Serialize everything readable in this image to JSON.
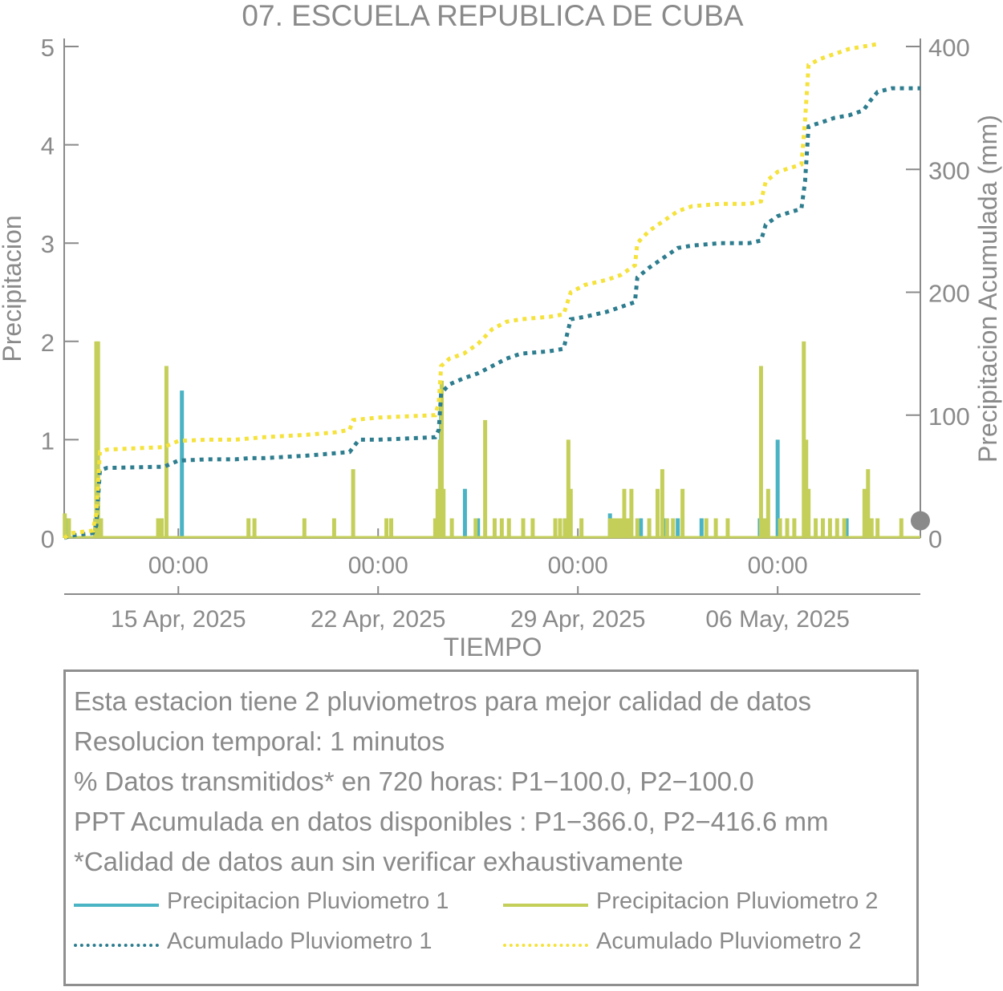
{
  "chart_data": {
    "type": "bar",
    "title": "07. ESCUELA REPUBLICA DE CUBA",
    "xlabel": "TIEMPO",
    "ylabel": "Precipitacion",
    "y2label": "Precipitacion Acumulada (mm)",
    "ylim": [
      0,
      5
    ],
    "y2lim": [
      0,
      400
    ],
    "yticks": [
      0,
      1,
      2,
      3,
      4,
      5
    ],
    "y2ticks": [
      0,
      100,
      200,
      300,
      400
    ],
    "xlim": [
      "2025-04-11T00:00",
      "2025-05-11T00:00"
    ],
    "xticks": [
      {
        "time": "2025-04-15T00:00",
        "label": "00:00",
        "date": "15 Apr, 2025"
      },
      {
        "time": "2025-04-22T00:00",
        "label": "00:00",
        "date": "22 Apr, 2025"
      },
      {
        "time": "2025-04-29T00:00",
        "label": "00:00",
        "date": "29 Apr, 2025"
      },
      {
        "time": "2025-05-06T00:00",
        "label": "00:00",
        "date": "06 May, 2025"
      }
    ],
    "colors": {
      "p1": "#4ab3c4",
      "p2": "#c4cf5a",
      "acc1": "#2e7d8f",
      "acc2": "#f5e23c",
      "axis": "#8a8a8a"
    },
    "series": [
      {
        "name": "Precipitacion Pluviometro 1",
        "axis": "left",
        "style": "bar",
        "points": [
          [
            "2025-04-11T01:00",
            0.2
          ],
          [
            "2025-04-12T03:00",
            1.25
          ],
          [
            "2025-04-12T05:00",
            0.2
          ],
          [
            "2025-04-15T03:00",
            1.5
          ],
          [
            "2025-04-24T03:00",
            0.4
          ],
          [
            "2025-04-24T05:00",
            1.5
          ],
          [
            "2025-04-25T01:00",
            0.5
          ],
          [
            "2025-04-25T12:00",
            0.2
          ],
          [
            "2025-04-28T15:00",
            0.2
          ],
          [
            "2025-04-30T03:00",
            0.25
          ],
          [
            "2025-05-01T05:00",
            0.2
          ],
          [
            "2025-05-02T02:00",
            0.2
          ],
          [
            "2025-05-02T12:00",
            0.2
          ],
          [
            "2025-05-03T08:00",
            0.2
          ],
          [
            "2025-05-05T09:00",
            0.2
          ],
          [
            "2025-05-06T00:00",
            1.0
          ],
          [
            "2025-05-08T10:00",
            0.2
          ]
        ]
      },
      {
        "name": "Precipitacion Pluviometro 2",
        "axis": "left",
        "style": "bar",
        "points": [
          [
            "2025-04-11T00:30",
            0.25
          ],
          [
            "2025-04-11T04:00",
            0.2
          ],
          [
            "2025-04-12T02:00",
            0.2
          ],
          [
            "2025-04-12T03:00",
            2.0
          ],
          [
            "2025-04-12T04:30",
            2.0
          ],
          [
            "2025-04-12T07:00",
            0.2
          ],
          [
            "2025-04-14T07:00",
            0.2
          ],
          [
            "2025-04-14T10:00",
            0.2
          ],
          [
            "2025-04-14T14:00",
            1.75
          ],
          [
            "2025-04-17T11:00",
            0.2
          ],
          [
            "2025-04-17T16:00",
            0.2
          ],
          [
            "2025-04-19T10:00",
            0.2
          ],
          [
            "2025-04-20T11:00",
            0.2
          ],
          [
            "2025-04-21T03:00",
            0.7
          ],
          [
            "2025-04-22T07:00",
            0.2
          ],
          [
            "2025-04-22T11:00",
            0.2
          ],
          [
            "2025-04-24T00:00",
            0.2
          ],
          [
            "2025-04-24T02:00",
            0.5
          ],
          [
            "2025-04-24T04:00",
            1.0
          ],
          [
            "2025-04-24T05:30",
            1.6
          ],
          [
            "2025-04-24T07:00",
            0.5
          ],
          [
            "2025-04-24T14:00",
            0.2
          ],
          [
            "2025-04-25T10:00",
            0.2
          ],
          [
            "2025-04-25T18:00",
            1.2
          ],
          [
            "2025-04-26T02:00",
            0.2
          ],
          [
            "2025-04-26T08:00",
            0.2
          ],
          [
            "2025-04-26T14:00",
            0.2
          ],
          [
            "2025-04-27T02:00",
            0.2
          ],
          [
            "2025-04-27T10:00",
            0.2
          ],
          [
            "2025-04-28T05:00",
            0.2
          ],
          [
            "2025-04-28T09:00",
            0.2
          ],
          [
            "2025-04-28T13:00",
            0.2
          ],
          [
            "2025-04-28T16:00",
            1.0
          ],
          [
            "2025-04-28T18:00",
            0.5
          ],
          [
            "2025-04-29T03:00",
            0.2
          ],
          [
            "2025-04-30T03:00",
            0.2
          ],
          [
            "2025-04-30T06:00",
            0.2
          ],
          [
            "2025-04-30T09:00",
            0.2
          ],
          [
            "2025-04-30T12:00",
            0.2
          ],
          [
            "2025-04-30T15:00",
            0.5
          ],
          [
            "2025-04-30T18:00",
            0.2
          ],
          [
            "2025-04-30T21:00",
            0.5
          ],
          [
            "2025-05-01T02:00",
            0.2
          ],
          [
            "2025-05-01T12:00",
            0.2
          ],
          [
            "2025-05-01T19:00",
            0.5
          ],
          [
            "2025-05-01T23:00",
            0.7
          ],
          [
            "2025-05-02T03:00",
            0.2
          ],
          [
            "2025-05-02T08:00",
            0.2
          ],
          [
            "2025-05-02T16:00",
            0.5
          ],
          [
            "2025-05-03T12:00",
            0.2
          ],
          [
            "2025-05-03T20:00",
            0.2
          ],
          [
            "2025-05-04T06:00",
            0.2
          ],
          [
            "2025-05-05T10:00",
            1.75
          ],
          [
            "2025-05-05T13:00",
            0.2
          ],
          [
            "2025-05-05T16:00",
            0.5
          ],
          [
            "2025-05-06T02:00",
            0.2
          ],
          [
            "2025-05-06T08:00",
            0.2
          ],
          [
            "2025-05-06T14:00",
            0.2
          ],
          [
            "2025-05-06T22:00",
            2.0
          ],
          [
            "2025-05-07T00:00",
            1.0
          ],
          [
            "2025-05-07T02:00",
            0.5
          ],
          [
            "2025-05-07T08:00",
            0.2
          ],
          [
            "2025-05-07T14:00",
            0.2
          ],
          [
            "2025-05-07T20:00",
            0.2
          ],
          [
            "2025-05-08T02:00",
            0.2
          ],
          [
            "2025-05-08T08:00",
            0.2
          ],
          [
            "2025-05-09T01:00",
            0.5
          ],
          [
            "2025-05-09T04:00",
            0.7
          ],
          [
            "2025-05-09T07:00",
            0.2
          ],
          [
            "2025-05-09T12:00",
            0.2
          ],
          [
            "2025-05-10T08:00",
            0.2
          ]
        ]
      },
      {
        "name": "Acumulado Pluviometro 1",
        "axis": "right",
        "style": "dotted",
        "points": [
          [
            "2025-04-11T00:00",
            0
          ],
          [
            "2025-04-11T06:00",
            2
          ],
          [
            "2025-04-12T00:00",
            4
          ],
          [
            "2025-04-12T03:00",
            10
          ],
          [
            "2025-04-12T06:00",
            55
          ],
          [
            "2025-04-12T12:00",
            57
          ],
          [
            "2025-04-14T12:00",
            58
          ],
          [
            "2025-04-15T00:00",
            63
          ],
          [
            "2025-04-16T00:00",
            64
          ],
          [
            "2025-04-17T00:00",
            64
          ],
          [
            "2025-04-17T12:00",
            65
          ],
          [
            "2025-04-18T00:00",
            65
          ],
          [
            "2025-04-19T12:00",
            67
          ],
          [
            "2025-04-20T12:00",
            69
          ],
          [
            "2025-04-21T00:00",
            70
          ],
          [
            "2025-04-21T04:00",
            75
          ],
          [
            "2025-04-21T08:00",
            80
          ],
          [
            "2025-04-22T00:00",
            80
          ],
          [
            "2025-04-23T00:00",
            81
          ],
          [
            "2025-04-24T00:00",
            82
          ],
          [
            "2025-04-24T03:00",
            88
          ],
          [
            "2025-04-24T05:00",
            118
          ],
          [
            "2025-04-24T12:00",
            125
          ],
          [
            "2025-04-25T00:00",
            130
          ],
          [
            "2025-04-25T12:00",
            134
          ],
          [
            "2025-04-26T00:00",
            140
          ],
          [
            "2025-04-26T12:00",
            146
          ],
          [
            "2025-04-27T00:00",
            150
          ],
          [
            "2025-04-28T00:00",
            152
          ],
          [
            "2025-04-28T12:00",
            154
          ],
          [
            "2025-04-28T18:00",
            178
          ],
          [
            "2025-04-29T06:00",
            180
          ],
          [
            "2025-04-30T00:00",
            184
          ],
          [
            "2025-04-30T12:00",
            188
          ],
          [
            "2025-05-01T00:00",
            192
          ],
          [
            "2025-05-01T02:00",
            212
          ],
          [
            "2025-05-01T12:00",
            220
          ],
          [
            "2025-05-02T00:00",
            228
          ],
          [
            "2025-05-02T06:00",
            232
          ],
          [
            "2025-05-02T12:00",
            236
          ],
          [
            "2025-05-03T00:00",
            238
          ],
          [
            "2025-05-04T00:00",
            240
          ],
          [
            "2025-05-05T00:00",
            240
          ],
          [
            "2025-05-05T10:00",
            242
          ],
          [
            "2025-05-05T14:00",
            255
          ],
          [
            "2025-05-06T00:00",
            262
          ],
          [
            "2025-05-06T20:00",
            268
          ],
          [
            "2025-05-06T23:00",
            290
          ],
          [
            "2025-05-07T02:00",
            335
          ],
          [
            "2025-05-07T12:00",
            338
          ],
          [
            "2025-05-08T00:00",
            342
          ],
          [
            "2025-05-08T12:00",
            344
          ],
          [
            "2025-05-09T00:00",
            348
          ],
          [
            "2025-05-09T06:00",
            356
          ],
          [
            "2025-05-09T12:00",
            363
          ],
          [
            "2025-05-10T00:00",
            366
          ],
          [
            "2025-05-11T00:00",
            366
          ]
        ]
      },
      {
        "name": "Acumulado Pluviometro 2",
        "axis": "right",
        "style": "dotted",
        "points": [
          [
            "2025-04-11T00:00",
            0
          ],
          [
            "2025-04-11T06:00",
            4
          ],
          [
            "2025-04-12T00:00",
            6
          ],
          [
            "2025-04-12T03:00",
            20
          ],
          [
            "2025-04-12T06:00",
            70
          ],
          [
            "2025-04-12T12:00",
            72
          ],
          [
            "2025-04-14T12:00",
            74
          ],
          [
            "2025-04-15T00:00",
            79
          ],
          [
            "2025-04-16T00:00",
            80
          ],
          [
            "2025-04-17T00:00",
            80
          ],
          [
            "2025-04-18T00:00",
            82
          ],
          [
            "2025-04-19T12:00",
            84
          ],
          [
            "2025-04-20T12:00",
            86
          ],
          [
            "2025-04-21T00:00",
            88
          ],
          [
            "2025-04-21T03:00",
            96
          ],
          [
            "2025-04-22T00:00",
            98
          ],
          [
            "2025-04-23T00:00",
            99
          ],
          [
            "2025-04-24T00:00",
            100
          ],
          [
            "2025-04-24T03:00",
            110
          ],
          [
            "2025-04-24T05:00",
            140
          ],
          [
            "2025-04-24T12:00",
            146
          ],
          [
            "2025-04-25T00:00",
            150
          ],
          [
            "2025-04-25T12:00",
            158
          ],
          [
            "2025-04-26T00:00",
            170
          ],
          [
            "2025-04-26T12:00",
            176
          ],
          [
            "2025-04-27T00:00",
            178
          ],
          [
            "2025-04-28T00:00",
            180
          ],
          [
            "2025-04-28T12:00",
            182
          ],
          [
            "2025-04-28T18:00",
            200
          ],
          [
            "2025-04-29T06:00",
            206
          ],
          [
            "2025-04-30T00:00",
            210
          ],
          [
            "2025-04-30T12:00",
            214
          ],
          [
            "2025-05-01T00:00",
            222
          ],
          [
            "2025-05-01T02:00",
            240
          ],
          [
            "2025-05-01T12:00",
            250
          ],
          [
            "2025-05-02T00:00",
            258
          ],
          [
            "2025-05-02T06:00",
            262
          ],
          [
            "2025-05-02T12:00",
            266
          ],
          [
            "2025-05-03T00:00",
            270
          ],
          [
            "2025-05-04T00:00",
            272
          ],
          [
            "2025-05-05T00:00",
            272
          ],
          [
            "2025-05-05T10:00",
            274
          ],
          [
            "2025-05-05T14:00",
            290
          ],
          [
            "2025-05-06T00:00",
            298
          ],
          [
            "2025-05-06T20:00",
            304
          ],
          [
            "2025-05-06T23:00",
            340
          ],
          [
            "2025-05-07T02:00",
            385
          ],
          [
            "2025-05-07T12:00",
            390
          ],
          [
            "2025-05-08T00:00",
            394
          ],
          [
            "2025-05-08T12:00",
            398
          ],
          [
            "2025-05-09T00:00",
            400
          ],
          [
            "2025-05-09T06:00",
            401
          ],
          [
            "2025-05-09T12:00",
            402
          ]
        ]
      }
    ],
    "end_marker": {
      "y2": 14,
      "color": "#8a8a8a"
    }
  },
  "info": {
    "lines": [
      "Esta estacion tiene 2 pluviometros para mejor calidad de datos",
      "Resolucion temporal: 1 minutos",
      "% Datos transmitidos* en 720 horas: P1−100.0, P2−100.0",
      "PPT Acumulada en datos disponibles : P1−366.0, P2−416.6 mm",
      "*Calidad de datos aun sin verificar exhaustivamente"
    ]
  },
  "legend": [
    {
      "label": "Precipitacion Pluviometro 1",
      "style": "solid",
      "color": "#4ab3c4"
    },
    {
      "label": "Precipitacion Pluviometro 2",
      "style": "solid",
      "color": "#c4cf5a"
    },
    {
      "label": "Acumulado Pluviometro 1",
      "style": "dotted",
      "color": "#2e7d8f"
    },
    {
      "label": "Acumulado Pluviometro 2",
      "style": "dotted",
      "color": "#f5e23c"
    }
  ]
}
